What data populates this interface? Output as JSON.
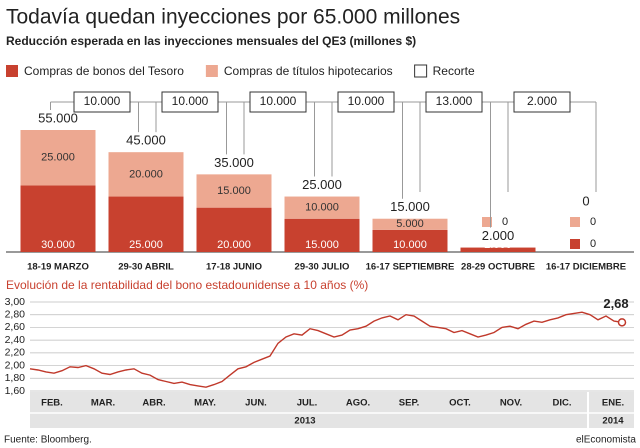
{
  "chart_data": [
    {
      "type": "bar",
      "stacked": true,
      "title": "Todavía quedan inyecciones por 65.000 millones",
      "subtitle": "Reducción esperada en las inyecciones mensuales del QE3 (millones $)",
      "categories": [
        "18-19 MARZO",
        "29-30 ABRIL",
        "17-18 JUNIO",
        "29-30 JULIO",
        "16-17 SEPTIEMBRE",
        "28-29 OCTUBRE",
        "16-17 DICIEMBRE"
      ],
      "series": [
        {
          "name": "Compras de bonos del Tesoro",
          "color": "#c8412f",
          "values": [
            30000,
            25000,
            20000,
            15000,
            10000,
            2000,
            0
          ],
          "value_labels": [
            "30.000",
            "25.000",
            "20.000",
            "15.000",
            "10.000",
            "2.000",
            "0"
          ]
        },
        {
          "name": "Compras de títulos hipotecarios",
          "color": "#eda891",
          "values": [
            25000,
            20000,
            15000,
            10000,
            5000,
            0,
            0
          ],
          "value_labels": [
            "25.000",
            "20.000",
            "15.000",
            "10.000",
            "5.000",
            "0",
            "0"
          ]
        }
      ],
      "cuts": {
        "name": "Recorte",
        "color": "#ffffff",
        "values": [
          null,
          10000,
          10000,
          10000,
          10000,
          13000,
          2000
        ],
        "value_labels": [
          null,
          "10.000",
          "10.000",
          "10.000",
          "10.000",
          "13.000",
          "2.000"
        ]
      },
      "totals": {
        "values": [
          55000,
          45000,
          35000,
          25000,
          15000,
          2000,
          0
        ],
        "value_labels": [
          "55.000",
          "45.000",
          "35.000",
          "25.000",
          "15.000",
          "2.000",
          "0"
        ]
      },
      "ylim": [
        0,
        55000
      ]
    },
    {
      "type": "line",
      "title": "Evolución de la rentabilidad del bono estadounidense a 10 años (%)",
      "color": "#c0392b",
      "values": [
        1.95,
        1.93,
        1.9,
        1.88,
        1.92,
        1.98,
        1.97,
        2.0,
        1.95,
        1.88,
        1.86,
        1.9,
        1.93,
        1.95,
        1.88,
        1.85,
        1.78,
        1.75,
        1.72,
        1.74,
        1.7,
        1.68,
        1.66,
        1.7,
        1.75,
        1.85,
        1.95,
        1.98,
        2.05,
        2.1,
        2.15,
        2.35,
        2.45,
        2.5,
        2.48,
        2.58,
        2.55,
        2.5,
        2.45,
        2.48,
        2.56,
        2.58,
        2.62,
        2.7,
        2.75,
        2.78,
        2.72,
        2.8,
        2.78,
        2.7,
        2.62,
        2.6,
        2.58,
        2.52,
        2.55,
        2.5,
        2.45,
        2.48,
        2.52,
        2.6,
        2.62,
        2.58,
        2.65,
        2.7,
        2.68,
        2.72,
        2.75,
        2.8,
        2.82,
        2.84,
        2.8,
        2.72,
        2.78,
        2.7,
        2.68
      ],
      "ylim": [
        1.6,
        3.0
      ],
      "yticks": [
        {
          "value": 1.6,
          "label": "1,60"
        },
        {
          "value": 1.8,
          "label": "1,80"
        },
        {
          "value": 2.0,
          "label": "2,00"
        },
        {
          "value": 2.2,
          "label": "2,20"
        },
        {
          "value": 2.4,
          "label": "2,40"
        },
        {
          "value": 2.6,
          "label": "2,60"
        },
        {
          "value": 2.8,
          "label": "2,80"
        },
        {
          "value": 3.0,
          "label": "3,00"
        }
      ],
      "months": [
        "FEB.",
        "MAR.",
        "ABR.",
        "MAY.",
        "JUN.",
        "JUL.",
        "AGO.",
        "SEP.",
        "OCT.",
        "NOV.",
        "DIC.",
        "ENE."
      ],
      "years": [
        "2013",
        "2014"
      ],
      "annotation": {
        "value": 2.68,
        "label": "2,68"
      },
      "grid": true
    }
  ],
  "footer": {
    "source": "Fuente: Bloomberg.",
    "brand": "elEconomista"
  }
}
